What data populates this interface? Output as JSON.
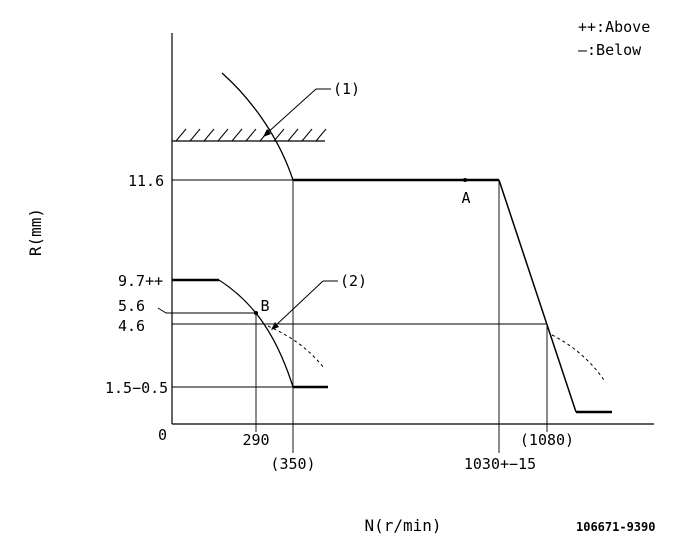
{
  "legend": {
    "above": "++:Above",
    "below": "—:Below"
  },
  "axes": {
    "y_label": "R(mm)",
    "x_label": "N(r/min)",
    "origin": "0"
  },
  "y_ticks": {
    "r_11_6": "11.6",
    "r_9_7": "9.7++",
    "r_5_6": "5.6",
    "r_4_6": "4.6",
    "r_1_5": "1.5−0.5"
  },
  "x_ticks": {
    "n_290": "290",
    "n_350": "(350)",
    "n_1030": "1030+−15",
    "n_1080": "(1080)"
  },
  "callouts": {
    "one": "(1)",
    "two": "(2)",
    "point_a": "A",
    "point_b": "B"
  },
  "drawing_code": "106671-9390"
}
